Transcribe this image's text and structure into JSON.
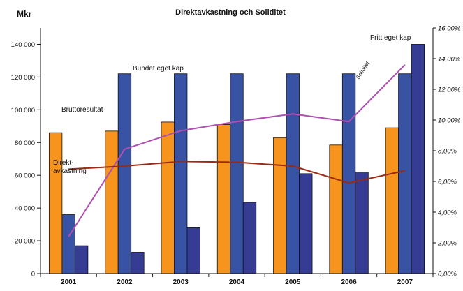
{
  "chart_data": {
    "type": "bar",
    "title": "Direktavkastning och Soliditet",
    "ylabel": "Mkr",
    "ylim": [
      0,
      150000
    ],
    "y_ticks": [
      "0",
      "20 000",
      "40 000",
      "60 000",
      "80 000",
      "100 000",
      "120 000",
      "140 000"
    ],
    "y2lim": [
      0,
      16
    ],
    "y2_ticks": [
      "0,00%",
      "2,00%",
      "4,00%",
      "6,00%",
      "8,00%",
      "10,00%",
      "12,00%",
      "14,00%",
      "16,00%"
    ],
    "categories": [
      "2001",
      "2002",
      "2003",
      "2004",
      "2005",
      "2006",
      "2007"
    ],
    "series": [
      {
        "name": "Bruttoresultat",
        "kind": "bar",
        "color": "#f7941d",
        "values": [
          86000,
          87000,
          92500,
          91000,
          83000,
          78500,
          89000
        ]
      },
      {
        "name": "Bundet eget kap",
        "kind": "bar",
        "color": "#3853a4",
        "values": [
          36000,
          122000,
          122000,
          122000,
          122000,
          122000,
          122000
        ]
      },
      {
        "name": "Fritt eget kap",
        "kind": "bar",
        "color": "#363b94",
        "values": [
          17000,
          13000,
          28000,
          43500,
          61000,
          62000,
          140000
        ]
      },
      {
        "name": "Soliditet",
        "kind": "line",
        "axis": "right",
        "color": "#b04fb2",
        "values": [
          2.4,
          8.1,
          9.3,
          9.9,
          10.4,
          9.9,
          13.6
        ]
      },
      {
        "name": "Direkt-avkastning",
        "kind": "line",
        "axis": "right",
        "color": "#9a2a14",
        "values": [
          6.8,
          7.0,
          7.3,
          7.25,
          7.0,
          5.9,
          6.7
        ]
      }
    ],
    "annotations": {
      "bruttoresultat": "Bruttoresultat",
      "bundet": "Bundet eget kap",
      "fritt": "Fritt eget kap",
      "soliditet": "Soliditet",
      "direkt_line1": "Direkt-",
      "direkt_line2": "avkastning"
    },
    "grid": false
  }
}
